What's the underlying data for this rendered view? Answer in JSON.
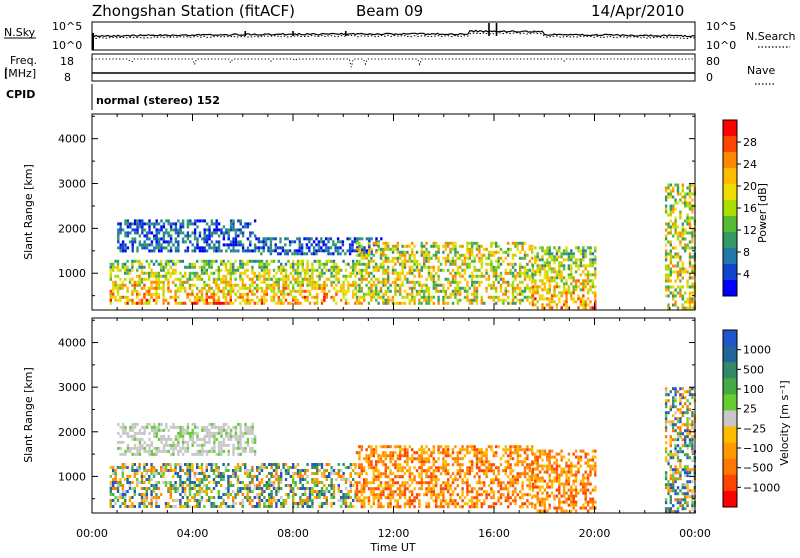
{
  "header": {
    "title": "Zhongshan Station (fitACF)",
    "beam": "Beam 09",
    "date": "14/Apr/2010"
  },
  "status_panels": {
    "nsky_label": "N.Sky",
    "nsky_ticks": [
      "10^5",
      "10^0"
    ],
    "nsearch_label": "N.Search",
    "nsearch_ticks": [
      "10^5",
      "10^0"
    ],
    "freq_label_1": "Freq.",
    "freq_label_2": "[MHz]",
    "freq_ticks": [
      "18",
      "8"
    ],
    "nave_label": "Nave",
    "nave_ticks": [
      "80",
      "0"
    ],
    "cpid_label": "CPID",
    "cpid_value": "normal (stereo) 152"
  },
  "chart_data": [
    {
      "type": "heatmap",
      "parameter": "power",
      "ylabel": "Slant Range [km]",
      "xlabel": "Time UT",
      "xlim": [
        0,
        24
      ],
      "ylim": [
        180,
        4550
      ],
      "y_ticks": [
        "1000",
        "2000",
        "3000",
        "4000"
      ],
      "colorbar": {
        "label": "Power [dB]",
        "ticks": [
          "28",
          "24",
          "20",
          "16",
          "12",
          "8",
          "4"
        ],
        "colors": [
          "#ff0000",
          "#ff4400",
          "#ff8800",
          "#ffbb00",
          "#eedd00",
          "#aadd00",
          "#55bb33",
          "#339966",
          "#2277aa",
          "#1144cc",
          "#0000ff"
        ]
      },
      "echo_regions": [
        {
          "t": [
            0.7,
            10.5
          ],
          "r": [
            300,
            1300
          ],
          "level": "high"
        },
        {
          "t": [
            1.0,
            6.5
          ],
          "r": [
            1500,
            2200
          ],
          "level": "low"
        },
        {
          "t": [
            6.5,
            11.5
          ],
          "r": [
            1400,
            1800
          ],
          "level": "low"
        },
        {
          "t": [
            10.5,
            17.5
          ],
          "r": [
            350,
            1700
          ],
          "level": "mid"
        },
        {
          "t": [
            17.5,
            20.0
          ],
          "r": [
            200,
            1600
          ],
          "level": "high"
        },
        {
          "t": [
            22.8,
            24.0
          ],
          "r": [
            200,
            3000
          ],
          "level": "mid"
        }
      ]
    },
    {
      "type": "heatmap",
      "parameter": "velocity",
      "ylabel": "Slant Range [km]",
      "xlabel": "Time UT",
      "xlim": [
        0,
        24
      ],
      "ylim": [
        180,
        4550
      ],
      "y_ticks": [
        "1000",
        "2000",
        "3000",
        "4000"
      ],
      "colorbar": {
        "label": "Velocity [m s⁻¹]",
        "ticks": [
          "1000",
          "500",
          "100",
          "25",
          "−25",
          "−100",
          "−500",
          "−1000"
        ],
        "colors": [
          "#2255cc",
          "#226699",
          "#338866",
          "#44aa44",
          "#66cc33",
          "#c8c8c8",
          "#ffbb00",
          "#ff9900",
          "#ff7700",
          "#ff4400",
          "#ff0000"
        ]
      },
      "echo_regions": [
        {
          "t": [
            0.7,
            10.5
          ],
          "r": [
            300,
            1300
          ],
          "level": "mixed"
        },
        {
          "t": [
            1.0,
            6.5
          ],
          "r": [
            1500,
            2200
          ],
          "level": "grey"
        },
        {
          "t": [
            10.5,
            17.5
          ],
          "r": [
            350,
            1700
          ],
          "level": "negative"
        },
        {
          "t": [
            17.5,
            20.0
          ],
          "r": [
            200,
            1600
          ],
          "level": "negative"
        },
        {
          "t": [
            22.8,
            24.0
          ],
          "r": [
            200,
            3000
          ],
          "level": "mixed"
        }
      ]
    }
  ],
  "x_ticks": [
    "00:00",
    "04:00",
    "08:00",
    "12:00",
    "16:00",
    "20:00",
    "00:00"
  ],
  "x_axis_label": "Time UT"
}
